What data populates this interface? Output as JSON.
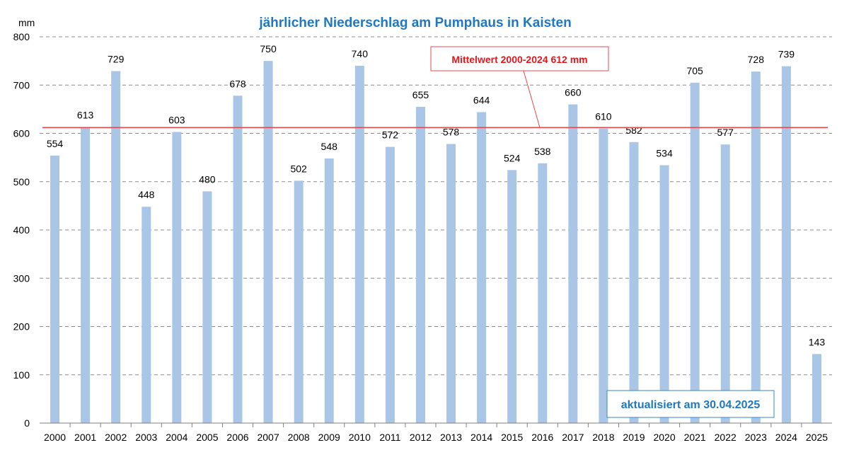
{
  "chart_data": {
    "type": "bar",
    "title": "jährlicher Niederschlag am Pumphaus in Kaisten",
    "ylabel": "mm",
    "ylim": [
      0,
      800
    ],
    "yticks": [
      0,
      100,
      200,
      300,
      400,
      500,
      600,
      700,
      800
    ],
    "grid": true,
    "categories": [
      "2000",
      "2001",
      "2002",
      "2003",
      "2004",
      "2005",
      "2006",
      "2007",
      "2008",
      "2009",
      "2010",
      "2011",
      "2012",
      "2013",
      "2014",
      "2015",
      "2016",
      "2017",
      "2018",
      "2019",
      "2020",
      "2021",
      "2022",
      "2023",
      "2024",
      "2025"
    ],
    "values": [
      554,
      613,
      729,
      448,
      603,
      480,
      678,
      750,
      502,
      548,
      740,
      572,
      655,
      578,
      644,
      524,
      538,
      660,
      610,
      582,
      534,
      705,
      577,
      728,
      739,
      143
    ],
    "mean": {
      "value": 612,
      "label": "Mittelwert 2000-2024  612 mm",
      "color": "#e8474c"
    },
    "note": "aktualisiert am 30.04.2025",
    "colors": {
      "bar": "#aac6e6",
      "title": "#1f78c1",
      "mean_text": "#e0191f",
      "note_border": "#3a86c8"
    }
  }
}
